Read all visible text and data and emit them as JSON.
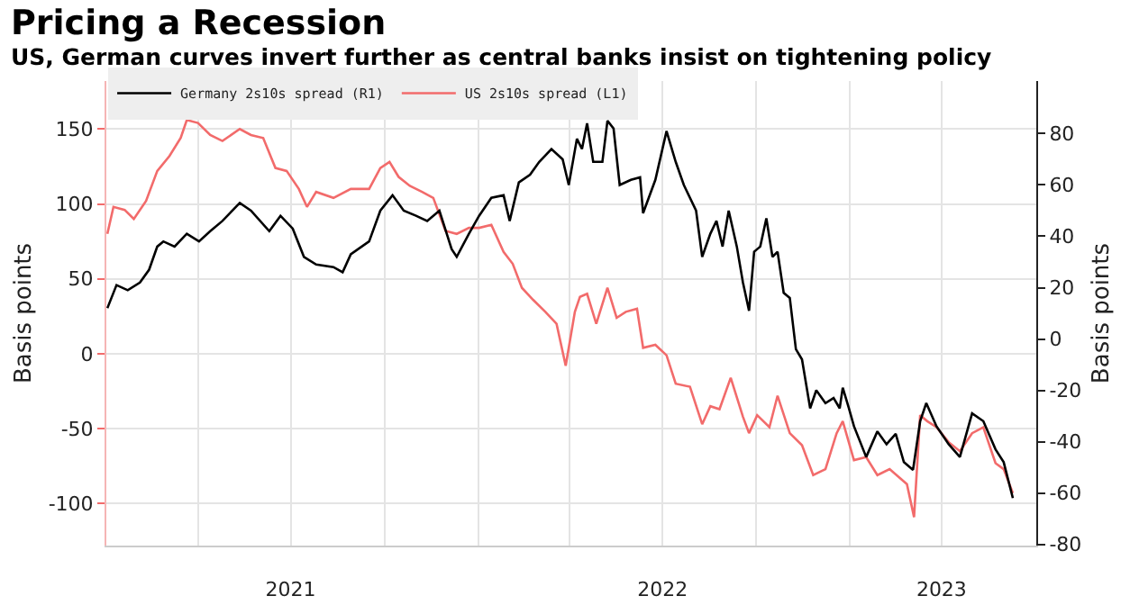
{
  "chart_data": {
    "type": "line",
    "title": "Pricing a Recession",
    "subtitle": "US, German curves invert further as central banks insist on tightening policy",
    "ylabel": "Basis points",
    "y2label": "Basis points",
    "xlim": [
      "2021-01-01",
      "2023-07-03"
    ],
    "xticks": [
      {
        "value": "2021-04-01",
        "label": null
      },
      {
        "value": "2021-07-01",
        "label": "2021"
      },
      {
        "value": "2021-10-01",
        "label": null
      },
      {
        "value": "2022-01-01",
        "label": null
      },
      {
        "value": "2022-04-01",
        "label": null
      },
      {
        "value": "2022-07-01",
        "label": "2022"
      },
      {
        "value": "2022-10-01",
        "label": null
      },
      {
        "value": "2023-01-01",
        "label": null
      },
      {
        "value": "2023-04-01",
        "label": "2023"
      }
    ],
    "ylim": [
      -128,
      182
    ],
    "yticks": [
      -100,
      -50,
      0,
      50,
      100,
      150
    ],
    "y2lim": [
      -80.5,
      100.5
    ],
    "y2ticks": [
      -80,
      -60,
      -40,
      -20,
      0,
      20,
      40,
      60,
      80
    ],
    "grid": true,
    "legend": "top left",
    "series": [
      {
        "name": "Germany 2s10s spread (R1)",
        "color": "#000000",
        "axis": "y2",
        "x": [
          "2021-01-02",
          "2021-01-11",
          "2021-01-22",
          "2021-02-03",
          "2021-02-12",
          "2021-02-20",
          "2021-02-26",
          "2021-03-09",
          "2021-03-21",
          "2021-04-02",
          "2021-04-13",
          "2021-04-25",
          "2021-05-12",
          "2021-05-23",
          "2021-06-10",
          "2021-06-21",
          "2021-07-03",
          "2021-07-14",
          "2021-07-26",
          "2021-08-12",
          "2021-08-21",
          "2021-08-29",
          "2021-09-16",
          "2021-09-27",
          "2021-10-09",
          "2021-10-20",
          "2021-11-01",
          "2021-11-12",
          "2021-11-24",
          "2021-12-06",
          "2021-12-11",
          "2021-12-23",
          "2022-01-02",
          "2022-01-14",
          "2022-01-26",
          "2022-02-01",
          "2022-02-10",
          "2022-02-21",
          "2022-03-02",
          "2022-03-14",
          "2022-03-25",
          "2022-03-31",
          "2022-04-08",
          "2022-04-13",
          "2022-04-18",
          "2022-04-24",
          "2022-05-03",
          "2022-05-08",
          "2022-05-14",
          "2022-05-20",
          "2022-05-31",
          "2022-06-09",
          "2022-06-12",
          "2022-06-24",
          "2022-07-05",
          "2022-07-14",
          "2022-07-22",
          "2022-08-03",
          "2022-08-09",
          "2022-08-17",
          "2022-08-23",
          "2022-08-29",
          "2022-09-04",
          "2022-09-12",
          "2022-09-18",
          "2022-09-24",
          "2022-09-29",
          "2022-10-05",
          "2022-10-11",
          "2022-10-17",
          "2022-10-22",
          "2022-10-28",
          "2022-11-03",
          "2022-11-09",
          "2022-11-15",
          "2022-11-23",
          "2022-11-29",
          "2022-12-08",
          "2022-12-16",
          "2022-12-22",
          "2022-12-25",
          "2022-12-31",
          "2023-01-05",
          "2023-01-17",
          "2023-01-28",
          "2023-02-06",
          "2023-02-15",
          "2023-02-23",
          "2023-03-04",
          "2023-03-11",
          "2023-03-17",
          "2023-03-27",
          "2023-04-08",
          "2023-04-19",
          "2023-05-01",
          "2023-05-12",
          "2023-05-24",
          "2023-06-01",
          "2023-06-10"
        ],
        "values": [
          12,
          21,
          19,
          22,
          27,
          36,
          38,
          36,
          41,
          38,
          42,
          46,
          53,
          50,
          42,
          48,
          43,
          32,
          29,
          28,
          26,
          33,
          38,
          50,
          56,
          50,
          48,
          46,
          50,
          35,
          32,
          41,
          48,
          55,
          56,
          46,
          61,
          64,
          69,
          74,
          70,
          60,
          78,
          74,
          84,
          69,
          69,
          85,
          82,
          60,
          62,
          63,
          49,
          62,
          81,
          69,
          60,
          50,
          32,
          41,
          46,
          36,
          50,
          36,
          22,
          11,
          34,
          36,
          47,
          32,
          34,
          18,
          16,
          -4,
          -8,
          -27,
          -20,
          -25,
          -23,
          -27,
          -19,
          -27,
          -34,
          -46,
          -36,
          -41,
          -37,
          -48,
          -51,
          -32,
          -25,
          -34,
          -41,
          -46,
          -29,
          -32,
          -43,
          -48,
          -62
        ]
      },
      {
        "name": "US 2s10s spread (L1)",
        "color": "#f26b6b",
        "x": [
          "2021-01-02",
          "2021-01-08",
          "2021-01-19",
          "2021-01-28",
          "2021-02-09",
          "2021-02-20",
          "2021-03-04",
          "2021-03-15",
          "2021-03-21",
          "2021-04-01",
          "2021-04-13",
          "2021-04-25",
          "2021-05-12",
          "2021-05-23",
          "2021-06-04",
          "2021-06-16",
          "2021-06-27",
          "2021-07-09",
          "2021-07-17",
          "2021-07-26",
          "2021-08-12",
          "2021-08-29",
          "2021-09-16",
          "2021-09-27",
          "2021-10-06",
          "2021-10-15",
          "2021-10-26",
          "2021-11-07",
          "2021-11-18",
          "2021-11-30",
          "2021-12-11",
          "2021-12-23",
          "2022-01-02",
          "2022-01-14",
          "2022-01-26",
          "2022-02-04",
          "2022-02-13",
          "2022-02-24",
          "2022-03-08",
          "2022-03-19",
          "2022-03-28",
          "2022-04-06",
          "2022-04-11",
          "2022-04-18",
          "2022-04-27",
          "2022-05-08",
          "2022-05-17",
          "2022-05-26",
          "2022-06-06",
          "2022-06-12",
          "2022-06-24",
          "2022-07-05",
          "2022-07-14",
          "2022-07-28",
          "2022-08-09",
          "2022-08-17",
          "2022-08-26",
          "2022-09-06",
          "2022-09-18",
          "2022-09-24",
          "2022-10-02",
          "2022-10-14",
          "2022-10-22",
          "2022-11-03",
          "2022-11-15",
          "2022-11-26",
          "2022-12-08",
          "2022-12-19",
          "2022-12-25",
          "2023-01-05",
          "2023-01-17",
          "2023-01-28",
          "2023-02-09",
          "2023-02-26",
          "2023-03-05",
          "2023-03-11",
          "2023-03-18",
          "2023-03-27",
          "2023-04-08",
          "2023-04-19",
          "2023-05-01",
          "2023-05-12",
          "2023-05-24",
          "2023-06-01",
          "2023-06-10"
        ],
        "values": [
          80,
          98,
          96,
          90,
          102,
          122,
          132,
          144,
          156,
          154,
          146,
          142,
          150,
          146,
          144,
          124,
          122,
          110,
          98,
          108,
          104,
          110,
          110,
          124,
          128,
          118,
          112,
          108,
          104,
          82,
          80,
          84,
          84,
          86,
          68,
          60,
          44,
          36,
          28,
          20,
          -8,
          28,
          38,
          40,
          20,
          44,
          24,
          28,
          30,
          4,
          6,
          -1,
          -20,
          -22,
          -47,
          -35,
          -37,
          -16,
          -42,
          -53,
          -41,
          -49,
          -28,
          -53,
          -61,
          -81,
          -77,
          -53,
          -45,
          -71,
          -69,
          -81,
          -77,
          -87,
          -109,
          -41,
          -45,
          -49,
          -59,
          -65,
          -53,
          -49,
          -73,
          -77,
          -93
        ]
      }
    ]
  }
}
